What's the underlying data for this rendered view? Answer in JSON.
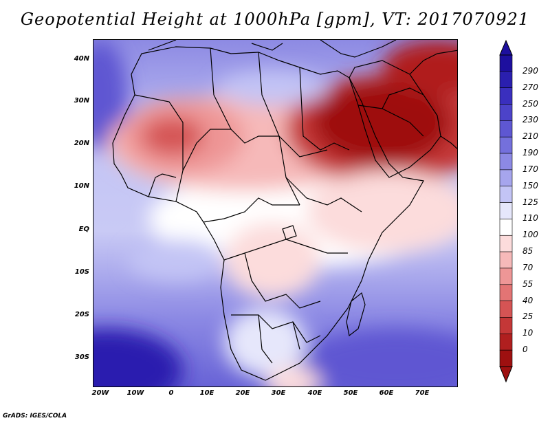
{
  "title": "Geopotential Height at 1000hPa [gpm], VT: 2017070921",
  "credit": "GrADS: IGES/COLA",
  "map": {
    "region": "Africa and Middle East",
    "lat_ticks": [
      "40N",
      "30N",
      "20N",
      "10N",
      "EQ",
      "10S",
      "20S",
      "30S"
    ],
    "lon_ticks": [
      "20W",
      "10W",
      "0",
      "10E",
      "20E",
      "30E",
      "40E",
      "50E",
      "60E",
      "70E"
    ]
  },
  "colorbar": {
    "levels": [
      "290",
      "270",
      "250",
      "230",
      "210",
      "190",
      "170",
      "150",
      "125",
      "110",
      "100",
      "85",
      "70",
      "55",
      "40",
      "25",
      "10",
      "0"
    ],
    "colors": [
      "#1d0f9e",
      "#2a1faf",
      "#3a2fbe",
      "#4c43c9",
      "#5e57d2",
      "#7470dc",
      "#8c89e4",
      "#a6a5ed",
      "#c3c4f5",
      "#e6e7fb",
      "#ffffff",
      "#fcdcdc",
      "#f6b9b9",
      "#ee9696",
      "#e37474",
      "#d55454",
      "#c43737",
      "#b01f1f",
      "#9e1010"
    ]
  }
}
